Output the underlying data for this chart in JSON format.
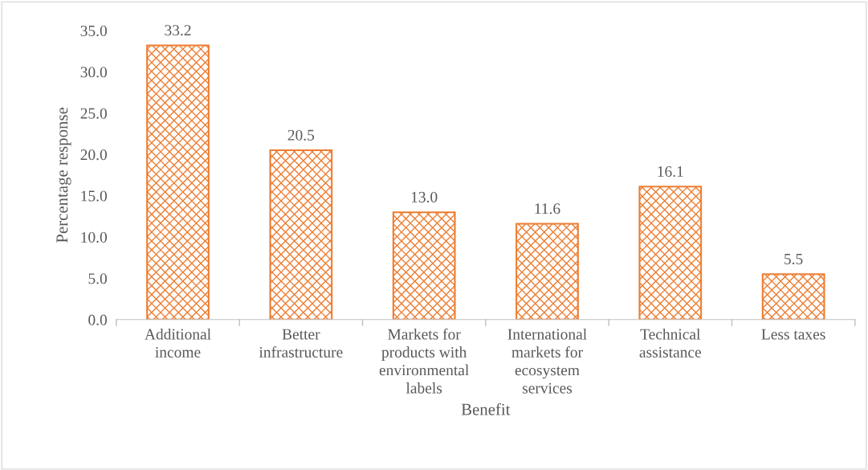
{
  "chart_data": {
    "type": "bar",
    "xlabel": "Benefit",
    "ylabel": "Percentage response",
    "categories": [
      "Additional\nincome",
      "Better\ninfrastructure",
      "Markets for\nproducts with\nenvironmental\nlabels",
      "International\nmarkets for\necosystem\nservices",
      "Technical\nassistance",
      "Less taxes"
    ],
    "values": [
      33.2,
      20.5,
      13.0,
      11.6,
      16.1,
      5.5
    ],
    "value_labels": [
      "33.2",
      "20.5",
      "13.0",
      "11.6",
      "16.1",
      "5.5"
    ],
    "color": "#ed7d31",
    "ylim": [
      0,
      35
    ],
    "yticks": [
      {
        "value": 0,
        "label": "0.0"
      },
      {
        "value": 5,
        "label": "5.0"
      },
      {
        "value": 10,
        "label": "10.0"
      },
      {
        "value": 15,
        "label": "15.0"
      },
      {
        "value": 20,
        "label": "20.0"
      },
      {
        "value": 25,
        "label": "25.0"
      },
      {
        "value": 30,
        "label": "30.0"
      },
      {
        "value": 35,
        "label": "35.0"
      }
    ],
    "grid": false,
    "legend": false
  }
}
